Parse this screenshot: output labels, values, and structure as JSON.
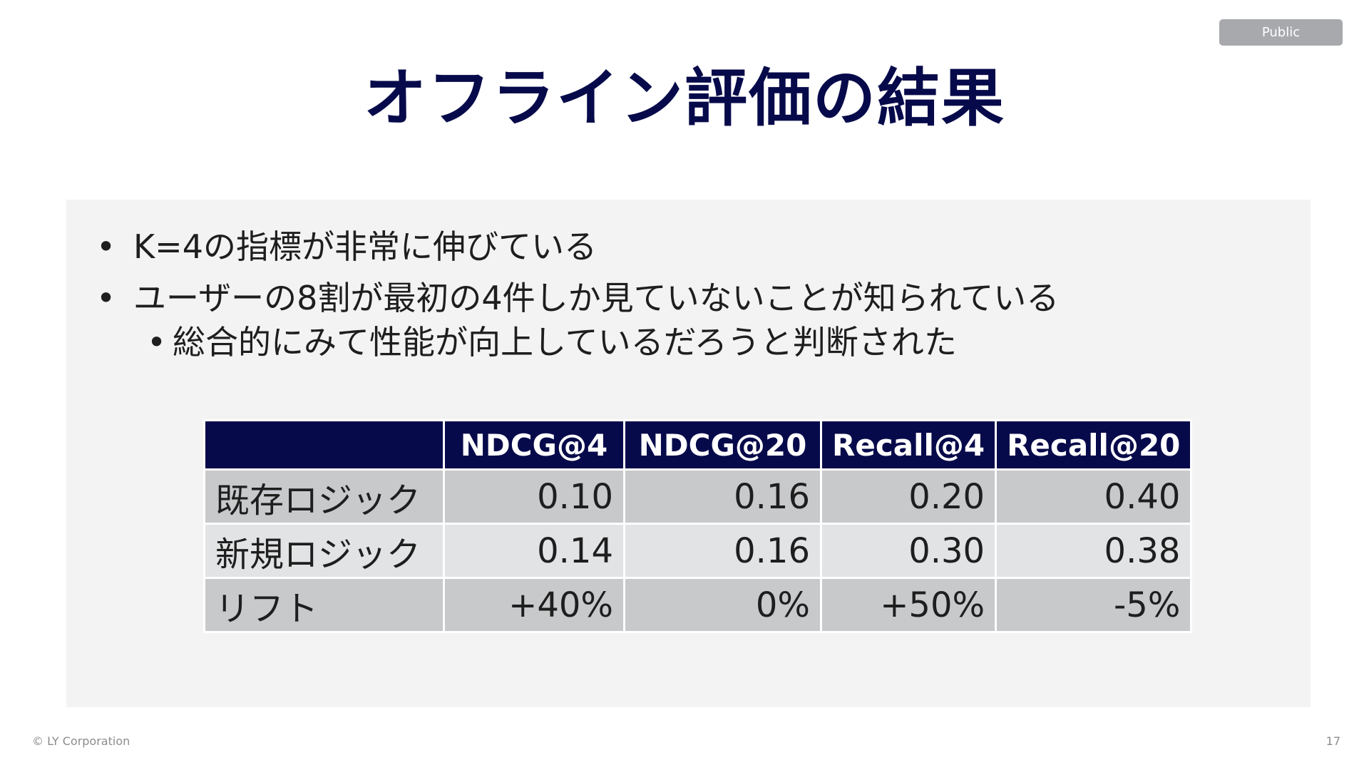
{
  "badge": "Public",
  "title": "オフライン評価の結果",
  "bullets": [
    "K=4の指標が非常に伸びている",
    "ユーザーの8割が最初の4件しか見ていないことが知られている"
  ],
  "sub_bullets": [
    "総合的にみて性能が向上しているだろうと判断された"
  ],
  "bullet_marker": "•",
  "table": {
    "headers": [
      "",
      "NDCG@4",
      "NDCG@20",
      "Recall@4",
      "Recall@20"
    ],
    "rows": [
      {
        "label": "既存ロジック",
        "values": [
          "0.10",
          "0.16",
          "0.20",
          "0.40"
        ]
      },
      {
        "label": "新規ロジック",
        "values": [
          "0.14",
          "0.16",
          "0.30",
          "0.38"
        ]
      },
      {
        "label": "リフト",
        "values": [
          "+40%",
          "0%",
          "+50%",
          "-5%"
        ]
      }
    ]
  },
  "footer": {
    "copyright": "© LY Corporation",
    "page_number": "17"
  },
  "colors": {
    "navy": "#070a4a",
    "panel": "#f3f3f3",
    "row_dark": "#c8c9cb",
    "row_light": "#e2e3e4"
  }
}
